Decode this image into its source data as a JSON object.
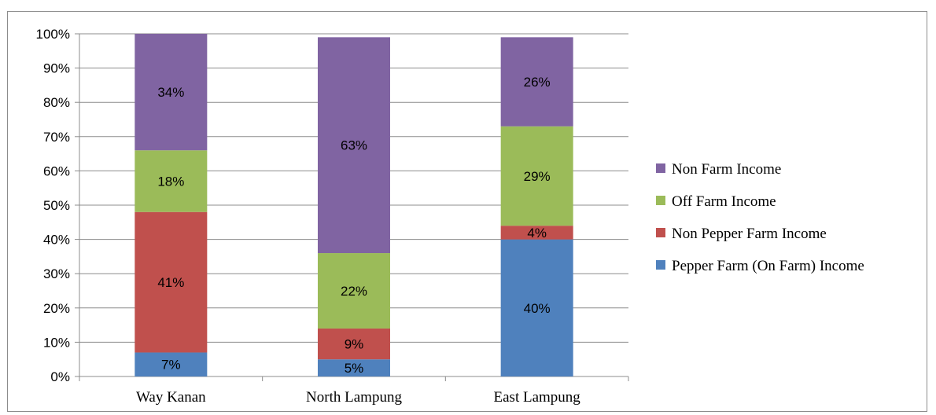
{
  "chart_data": {
    "type": "bar",
    "stacked": true,
    "percent": true,
    "categories": [
      "Way Kanan",
      "North Lampung",
      "East Lampung"
    ],
    "series": [
      {
        "name": "Pepper Farm (On Farm) Income",
        "color": "#4F81BD",
        "values": [
          7,
          5,
          40
        ],
        "labels": [
          "7%",
          "5%",
          "40%"
        ]
      },
      {
        "name": "Non Pepper Farm Income",
        "color": "#C0504D",
        "values": [
          41,
          9,
          4
        ],
        "labels": [
          "41%",
          "9%",
          "4%"
        ]
      },
      {
        "name": "Off Farm Income",
        "color": "#9BBB59",
        "values": [
          18,
          22,
          29
        ],
        "labels": [
          "18%",
          "22%",
          "29%"
        ]
      },
      {
        "name": "Non Farm Income",
        "color": "#8064A2",
        "values": [
          34,
          63,
          26
        ],
        "labels": [
          "34%",
          "63%",
          "26%"
        ]
      }
    ],
    "yticks": [
      "0%",
      "10%",
      "20%",
      "30%",
      "40%",
      "50%",
      "60%",
      "70%",
      "80%",
      "90%",
      "100%"
    ],
    "ylim": [
      0,
      100
    ],
    "grid": true,
    "legend_position": "right"
  }
}
